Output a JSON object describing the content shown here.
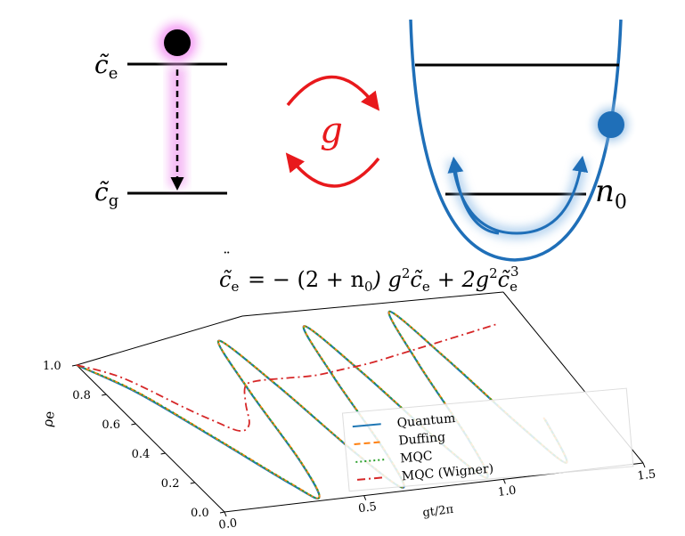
{
  "two_level": {
    "excited_label": "c̃",
    "excited_sub": "e",
    "ground_label": "c̃",
    "ground_sub": "g"
  },
  "coupling": {
    "label": "g",
    "color": "#e8191c"
  },
  "oscillator": {
    "label": "n",
    "label_sub": "0",
    "color": "#1f6fb8"
  },
  "equation": {
    "lhs": "c̃",
    "lhs_sub": "e",
    "rhs_part1": "= − (2 + n",
    "rhs_part1_sub": "0",
    "rhs_part2": ") g",
    "rhs_part2_sup": "2",
    "rhs_part3": "c̃",
    "rhs_part3_sub": "e",
    "rhs_part4": "+ 2g",
    "rhs_part4_sup": "2",
    "rhs_part5": "c̃",
    "rhs_part5_sub": "e",
    "rhs_part5_sup": "3"
  },
  "chart_data": {
    "type": "line",
    "xlabel": "gt/2π",
    "ylabel": "ρe",
    "x_ticks": [
      "0.0",
      "0.5",
      "1.0",
      "1.5"
    ],
    "y_ticks": [
      "0.0",
      "0.2",
      "0.4",
      "0.6",
      "0.8",
      "1.0"
    ],
    "xlim": [
      0,
      1.5
    ],
    "ylim": [
      0,
      1.0
    ],
    "legend_position": "lower-right",
    "series": [
      {
        "name": "Quantum",
        "color": "#1f77b4",
        "style": "solid",
        "x": [
          0,
          0.1,
          0.2,
          0.3,
          0.35,
          0.4,
          0.45,
          0.5,
          0.55,
          0.6,
          0.65,
          0.7,
          0.75,
          0.8,
          0.85,
          0.9,
          0.95,
          1.0,
          1.05,
          1.1,
          1.15,
          1.2,
          1.25,
          1.3
        ],
        "y": [
          1.0,
          0.78,
          0.45,
          0.12,
          0.02,
          0.25,
          0.7,
          1.0,
          0.7,
          0.25,
          0.02,
          0.25,
          0.7,
          1.0,
          0.7,
          0.25,
          0.02,
          0.25,
          0.7,
          1.0,
          0.7,
          0.3,
          0.05,
          0.3
        ]
      },
      {
        "name": "Duffing",
        "color": "#ff7f0e",
        "style": "dashed",
        "x": [
          0,
          0.1,
          0.2,
          0.3,
          0.35,
          0.4,
          0.45,
          0.5,
          0.55,
          0.6,
          0.65,
          0.7,
          0.75,
          0.8,
          0.85,
          0.9,
          0.95,
          1.0,
          1.05,
          1.1,
          1.15,
          1.2,
          1.25,
          1.3
        ],
        "y": [
          1.0,
          0.79,
          0.46,
          0.13,
          0.02,
          0.24,
          0.69,
          1.0,
          0.71,
          0.26,
          0.02,
          0.24,
          0.69,
          1.0,
          0.71,
          0.26,
          0.02,
          0.24,
          0.69,
          1.0,
          0.71,
          0.31,
          0.05,
          0.31
        ]
      },
      {
        "name": "MQC",
        "color": "#2ca02c",
        "style": "dotted",
        "x": [
          0,
          0.1,
          0.2,
          0.3,
          0.35,
          0.4,
          0.45,
          0.5,
          0.55,
          0.6,
          0.65,
          0.7,
          0.75,
          0.8,
          0.85,
          0.9,
          0.95,
          1.0,
          1.05,
          1.1,
          1.15,
          1.2,
          1.25,
          1.3
        ],
        "y": [
          1.0,
          0.79,
          0.46,
          0.13,
          0.02,
          0.24,
          0.69,
          1.0,
          0.71,
          0.26,
          0.02,
          0.24,
          0.69,
          1.0,
          0.71,
          0.26,
          0.02,
          0.24,
          0.69,
          1.0,
          0.71,
          0.31,
          0.05,
          0.31
        ]
      },
      {
        "name": "MQC (Wigner)",
        "color": "#d62728",
        "style": "dashdot",
        "x": [
          0,
          0.1,
          0.2,
          0.25,
          0.3,
          0.35,
          0.4,
          0.45,
          0.5,
          0.6,
          0.7,
          0.8,
          0.9,
          1.0,
          1.1,
          1.2,
          1.3,
          1.4
        ],
        "y": [
          1.0,
          0.88,
          0.65,
          0.55,
          0.47,
          0.5,
          0.62,
          0.72,
          0.74,
          0.73,
          0.72,
          0.73,
          0.74,
          0.76,
          0.78,
          0.8,
          0.82,
          0.84
        ]
      }
    ]
  }
}
